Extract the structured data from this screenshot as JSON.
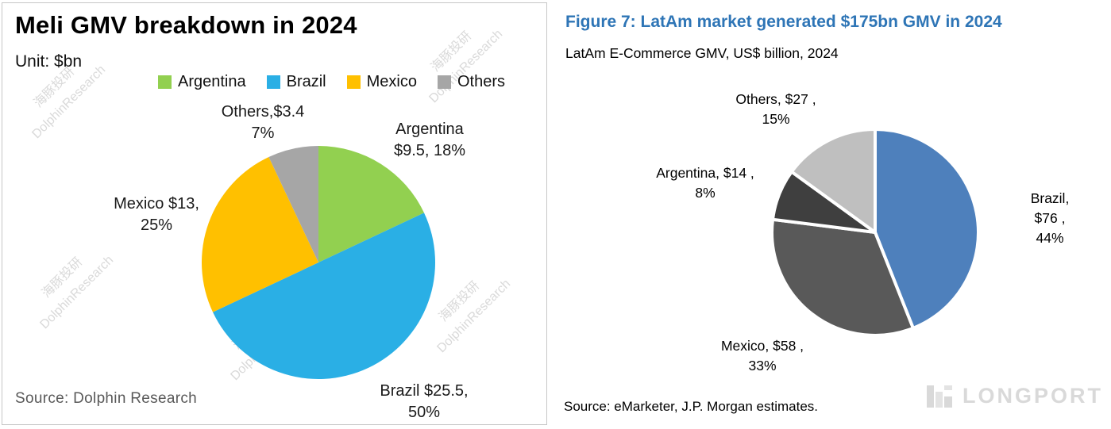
{
  "colors": {
    "right_title": "#2E75B6",
    "left_source_text": "#595959",
    "watermark": "#bfbfbf",
    "brand_logo": "#D9D9D9",
    "panel_border": "#C7C7C7"
  },
  "chart_data": [
    {
      "id": "meli-gmv-breakdown-2024",
      "type": "pie",
      "title": "Meli GMV breakdown in 2024",
      "unit_label": "Unit: $bn",
      "legend_position": "top",
      "start_angle_deg": 0,
      "direction": "clockwise",
      "slices": [
        {
          "label": "Argentina",
          "value": 9.5,
          "percent": 18,
          "color": "#92D050",
          "data_label": "Argentina\n$9.5, 18%"
        },
        {
          "label": "Brazil",
          "value": 25.5,
          "percent": 50,
          "color": "#2AAFE5",
          "data_label": "Brazil $25.5,\n50%"
        },
        {
          "label": "Mexico",
          "value": 13,
          "percent": 25,
          "color": "#FFC000",
          "data_label": "Mexico $13,\n25%"
        },
        {
          "label": "Others",
          "value": 3.4,
          "percent": 7,
          "color": "#A6A6A6",
          "data_label": "Others,$3.4\n7%"
        }
      ],
      "source": "Source:  Dolphin Research",
      "watermark": "海豚投研\nDolphinResearch"
    },
    {
      "id": "latam-ecommerce-gmv-2024",
      "type": "pie",
      "title": "Figure 7: LatAm market generated $175bn GMV in 2024",
      "subtitle": "LatAm E-Commerce GMV, US$ billion, 2024",
      "start_angle_deg": 0,
      "direction": "clockwise",
      "slices": [
        {
          "label": "Brazil",
          "value": 76,
          "percent": 44,
          "color": "#4E80BC",
          "data_label": "Brazil, $76 ,\n44%"
        },
        {
          "label": "Mexico",
          "value": 58,
          "percent": 33,
          "color": "#595959",
          "data_label": "Mexico, $58 ,\n33%"
        },
        {
          "label": "Argentina",
          "value": 14,
          "percent": 8,
          "color": "#3F3F3F",
          "data_label": "Argentina, $14 ,\n8%"
        },
        {
          "label": "Others",
          "value": 27,
          "percent": 15,
          "color": "#BFBFBF",
          "data_label": "Others, $27 ,\n15%"
        }
      ],
      "source": "Source: eMarketer, J.P. Morgan estimates.",
      "brand": "LONGPORT"
    }
  ]
}
